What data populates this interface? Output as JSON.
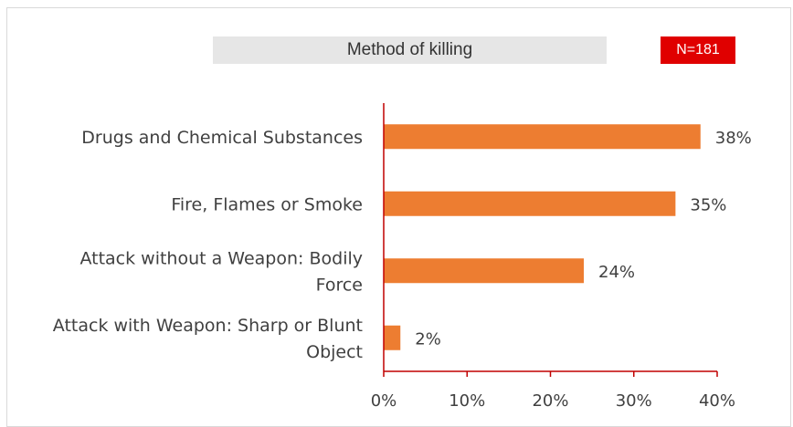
{
  "chart_data": {
    "type": "bar",
    "orientation": "horizontal",
    "title": "Method of killing",
    "badge": "N=181",
    "categories": [
      [
        "Drugs and Chemical Substances"
      ],
      [
        "Fire, Flames or Smoke"
      ],
      [
        "Attack without a Weapon: Bodily",
        "Force"
      ],
      [
        "Attack with Weapon: Sharp or Blunt",
        "Object"
      ]
    ],
    "values": [
      38,
      35,
      24,
      2
    ],
    "value_labels": [
      "38%",
      "35%",
      "24%",
      "2%"
    ],
    "xlim": [
      0,
      40
    ],
    "xticks": [
      0,
      10,
      20,
      30,
      40
    ],
    "xtick_labels": [
      "0%",
      "10%",
      "20%",
      "30%",
      "40%"
    ],
    "xlabel": "",
    "ylabel": "",
    "grid": false,
    "legend": "none",
    "colors": {
      "bar": "#ed7d31",
      "axis": "#c00000",
      "badge": "#e00000",
      "title_bg": "#e6e6e6"
    }
  }
}
